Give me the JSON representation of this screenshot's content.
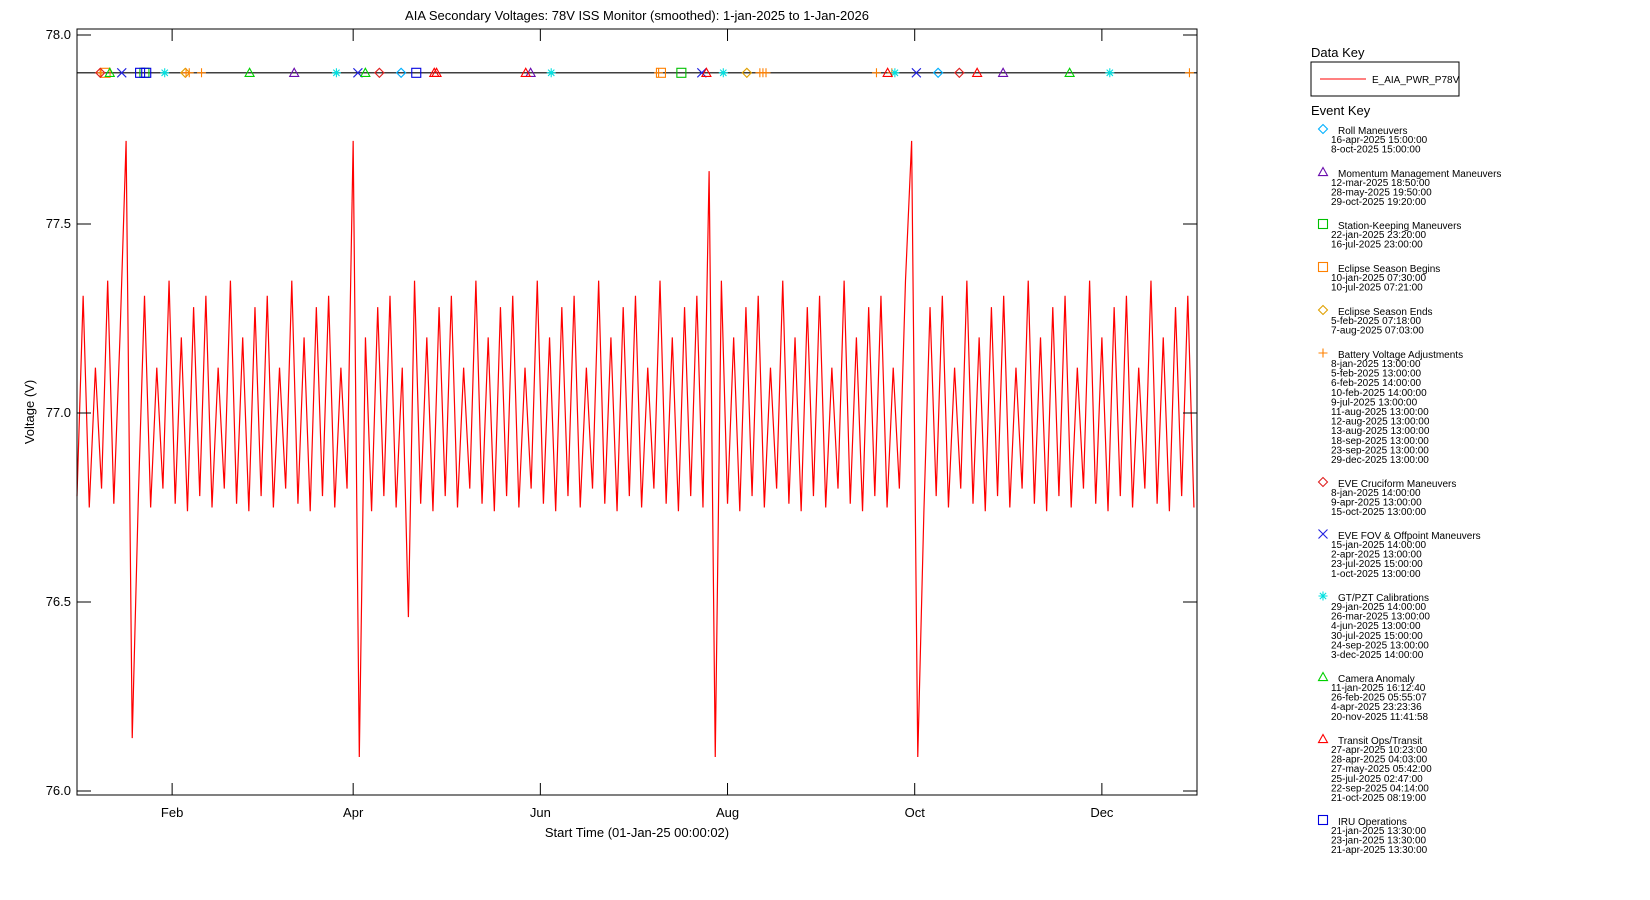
{
  "chart_data": {
    "type": "line",
    "title": "AIA Secondary Voltages: 78V ISS Monitor (smoothed): 1-jan-2025 to 1-Jan-2026",
    "xlabel": "Start Time (01-Jan-25 00:00:02)",
    "ylabel": "Voltage (V)",
    "xlim": [
      0,
      365
    ],
    "ylim": [
      76.0,
      78.0
    ],
    "xticks": [
      {
        "value": 31,
        "label": "Feb"
      },
      {
        "value": 90,
        "label": "Apr"
      },
      {
        "value": 151,
        "label": "Jun"
      },
      {
        "value": 212,
        "label": "Aug"
      },
      {
        "value": 273,
        "label": "Oct"
      },
      {
        "value": 334,
        "label": "Dec"
      }
    ],
    "yticks": [
      {
        "value": 76,
        "label": "76.0"
      },
      76.5,
      {
        "value": 77,
        "label": "77.0"
      },
      77.5,
      {
        "value": 78,
        "label": "78.0"
      }
    ],
    "x": [
      0,
      2,
      4,
      6,
      8,
      10,
      12,
      14,
      16,
      18,
      20,
      22,
      24,
      26,
      28,
      30,
      32,
      34,
      36,
      38,
      40,
      42,
      44,
      46,
      48,
      50,
      52,
      54,
      56,
      58,
      60,
      62,
      64,
      66,
      68,
      70,
      72,
      74,
      76,
      78,
      80,
      82,
      84,
      86,
      88,
      90,
      92,
      94,
      96,
      98,
      100,
      102,
      104,
      106,
      108,
      110,
      112,
      114,
      116,
      118,
      120,
      122,
      124,
      126,
      128,
      130,
      132,
      134,
      136,
      138,
      140,
      142,
      144,
      146,
      148,
      150,
      152,
      154,
      156,
      158,
      160,
      162,
      164,
      166,
      168,
      170,
      172,
      174,
      176,
      178,
      180,
      182,
      184,
      186,
      188,
      190,
      192,
      194,
      196,
      198,
      200,
      202,
      204,
      206,
      208,
      210,
      212,
      214,
      216,
      218,
      220,
      222,
      224,
      226,
      228,
      230,
      232,
      234,
      236,
      238,
      240,
      242,
      244,
      246,
      248,
      250,
      252,
      254,
      256,
      258,
      260,
      262,
      264,
      266,
      268,
      270,
      272,
      274,
      276,
      278,
      280,
      282,
      284,
      286,
      288,
      290,
      292,
      294,
      296,
      298,
      300,
      302,
      304,
      306,
      308,
      310,
      312,
      314,
      316,
      318,
      320,
      322,
      324,
      326,
      328,
      330,
      332,
      334,
      336,
      338,
      340,
      342,
      344,
      346,
      348,
      350,
      352,
      354,
      356,
      358,
      360,
      362,
      364
    ],
    "series": [
      {
        "name": "E_AIA_PWR_P78V",
        "color": "#ff0000",
        "values": [
          76.78,
          77.31,
          76.75,
          77.12,
          76.8,
          77.35,
          76.76,
          77.2,
          77.72,
          76.14,
          76.78,
          77.31,
          76.75,
          77.12,
          76.8,
          77.35,
          76.76,
          77.2,
          76.74,
          77.28,
          76.78,
          77.31,
          76.75,
          77.12,
          76.8,
          77.35,
          76.76,
          77.2,
          76.74,
          77.28,
          76.78,
          77.31,
          76.75,
          77.12,
          76.8,
          77.35,
          76.76,
          77.2,
          76.74,
          77.28,
          76.78,
          77.31,
          76.75,
          77.12,
          76.8,
          77.72,
          76.09,
          77.2,
          76.74,
          77.28,
          76.78,
          77.31,
          76.75,
          77.12,
          76.46,
          77.35,
          76.76,
          77.2,
          76.74,
          77.28,
          76.78,
          77.31,
          76.75,
          77.12,
          76.8,
          77.35,
          76.76,
          77.2,
          76.74,
          77.28,
          76.78,
          77.31,
          76.75,
          77.12,
          76.8,
          77.35,
          76.76,
          77.2,
          76.74,
          77.28,
          76.78,
          77.31,
          76.75,
          77.12,
          76.8,
          77.35,
          76.76,
          77.2,
          76.74,
          77.28,
          76.78,
          77.31,
          76.75,
          77.12,
          76.8,
          77.35,
          76.76,
          77.2,
          76.74,
          77.28,
          76.78,
          77.31,
          76.75,
          77.64,
          76.09,
          77.35,
          76.76,
          77.2,
          76.74,
          77.28,
          76.78,
          77.31,
          76.75,
          77.12,
          76.8,
          77.35,
          76.76,
          77.2,
          76.74,
          77.28,
          76.78,
          77.31,
          76.75,
          77.12,
          76.8,
          77.35,
          76.76,
          77.2,
          76.74,
          77.28,
          76.78,
          77.31,
          76.75,
          77.12,
          76.8,
          77.35,
          77.72,
          76.09,
          76.74,
          77.28,
          76.78,
          77.31,
          76.75,
          77.12,
          76.8,
          77.35,
          76.76,
          77.2,
          76.74,
          77.28,
          76.78,
          77.31,
          76.75,
          77.12,
          76.8,
          77.35,
          76.76,
          77.2,
          76.74,
          77.28,
          76.78,
          77.31,
          76.75,
          77.12,
          76.8,
          77.35,
          76.76,
          77.2,
          76.74,
          77.28,
          76.78,
          77.31,
          76.75,
          77.12,
          76.8,
          77.35,
          76.76,
          77.2,
          76.74,
          77.28,
          76.78,
          77.31,
          76.75
        ]
      }
    ],
    "event_level": 77.9,
    "data_key_title": "Data Key",
    "event_key_title": "Event Key",
    "events": [
      {
        "name": "Roll Maneuvers",
        "marker": "diamond",
        "color": "#00b0ff",
        "dates": [
          "16-apr-2025 15:00:00",
          "8-oct-2025 15:00:00"
        ]
      },
      {
        "name": "Momentum Management Maneuvers",
        "marker": "triangle",
        "color": "#6a0dad",
        "dates": [
          "12-mar-2025 18:50:00",
          "28-may-2025 19:50:00",
          "29-oct-2025 19:20:00"
        ]
      },
      {
        "name": "Station-Keeping Maneuvers",
        "marker": "square",
        "color": "#00c000",
        "dates": [
          "22-jan-2025 23:20:00",
          "16-jul-2025 23:00:00"
        ]
      },
      {
        "name": "Eclipse Season Begins",
        "marker": "square",
        "color": "#ff8000",
        "dates": [
          "10-jan-2025 07:30:00",
          "10-jul-2025 07:21:00"
        ]
      },
      {
        "name": "Eclipse Season Ends",
        "marker": "diamond",
        "color": "#e0a000",
        "dates": [
          "5-feb-2025 07:18:00",
          "7-aug-2025 07:03:00"
        ]
      },
      {
        "name": "Battery Voltage Adjustments",
        "marker": "plus",
        "color": "#ff8000",
        "dates": [
          "8-jan-2025 13:00:00",
          "5-feb-2025 13:00:00",
          "6-feb-2025 14:00:00",
          "10-feb-2025 14:00:00",
          "9-jul-2025 13:00:00",
          "11-aug-2025 13:00:00",
          "12-aug-2025 13:00:00",
          "13-aug-2025 13:00:00",
          "18-sep-2025 13:00:00",
          "23-sep-2025 13:00:00",
          "29-dec-2025 13:00:00"
        ]
      },
      {
        "name": "EVE Cruciform Maneuvers",
        "marker": "diamond",
        "color": "#e02020",
        "dates": [
          "8-jan-2025 14:00:00",
          "9-apr-2025 13:00:00",
          "15-oct-2025 13:00:00"
        ]
      },
      {
        "name": "EVE FOV & Offpoint Maneuvers",
        "marker": "x",
        "color": "#2020e0",
        "dates": [
          "15-jan-2025 14:00:00",
          "2-apr-2025 13:00:00",
          "23-jul-2025 15:00:00",
          "1-oct-2025 13:00:00"
        ]
      },
      {
        "name": "GT/PZT Calibrations",
        "marker": "asterisk",
        "color": "#00e0e0",
        "dates": [
          "29-jan-2025 14:00:00",
          "26-mar-2025 13:00:00",
          "4-jun-2025 13:00:00",
          "30-jul-2025 15:00:00",
          "24-sep-2025 13:00:00",
          "3-dec-2025 14:00:00"
        ]
      },
      {
        "name": "Camera Anomaly",
        "marker": "triangle",
        "color": "#00d000",
        "dates": [
          "11-jan-2025 16:12:40",
          "26-feb-2025 05:55:07",
          "4-apr-2025 23:23:36",
          "20-nov-2025 11:41:58"
        ]
      },
      {
        "name": "Transit Ops/Transit",
        "marker": "triangle",
        "color": "#ff0000",
        "dates": [
          "27-apr-2025 10:23:00",
          "28-apr-2025 04:03:00",
          "27-may-2025 05:42:00",
          "25-jul-2025 02:47:00",
          "22-sep-2025 04:14:00",
          "21-oct-2025 08:19:00"
        ]
      },
      {
        "name": "IRU Operations",
        "marker": "square",
        "color": "#0000e0",
        "dates": [
          "21-jan-2025 13:30:00",
          "23-jan-2025 13:30:00",
          "21-apr-2025 13:30:00"
        ]
      }
    ]
  }
}
